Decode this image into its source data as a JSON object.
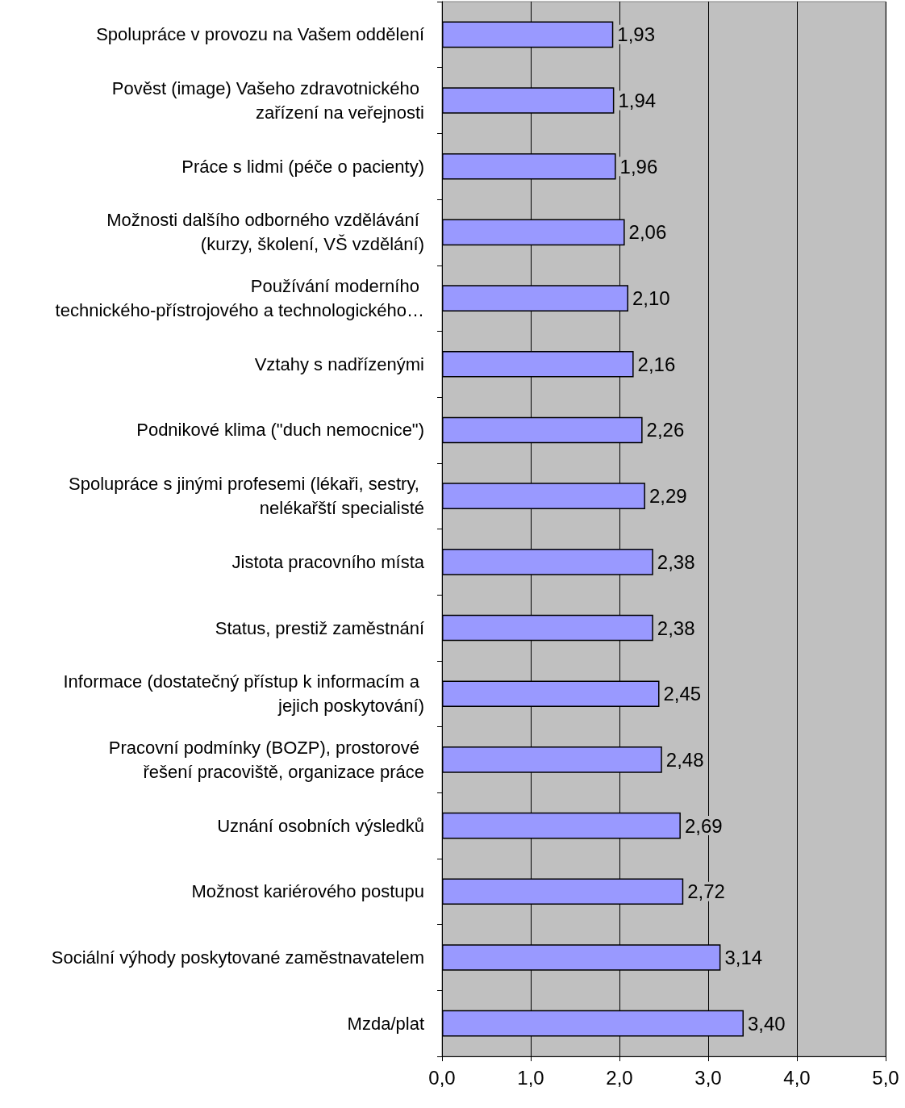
{
  "chart_data": {
    "type": "bar",
    "orientation": "horizontal",
    "categories": [
      "Spolupráce v provozu na Vašem oddělení",
      "Pověst (image) Vašeho zdravotnického zařízení na veřejnosti",
      "Práce s lidmi (péče o pacienty)",
      "Možnosti dalšího odborného vzdělávání (kurzy, školení, VŠ vzdělání)",
      "Používání moderního technického-přístrojového a technologického…",
      "Vztahy s nadřízenými",
      "Podnikové klima (\"duch nemocnice\")",
      "Spolupráce s jinými profesemi (lékaři, sestry, nelékařští specialisté",
      "Jistota pracovního místa",
      "Status, prestiž zaměstnání",
      "Informace (dostatečný přístup k informacím a jejich poskytování)",
      "Pracovní podmínky (BOZP), prostorové řešení pracoviště, organizace práce",
      "Uznání osobních výsledků",
      "Možnost kariérového postupu",
      "Sociální výhody poskytované zaměstnavatelem",
      "Mzda/plat"
    ],
    "values": [
      1.93,
      1.94,
      1.96,
      2.06,
      2.1,
      2.16,
      2.26,
      2.29,
      2.38,
      2.38,
      2.45,
      2.48,
      2.69,
      2.72,
      3.14,
      3.4
    ],
    "value_labels": [
      "1,93",
      "1,94",
      "1,96",
      "2,06",
      "2,10",
      "2,16",
      "2,26",
      "2,29",
      "2,38",
      "2,38",
      "2,45",
      "2,48",
      "2,69",
      "2,72",
      "3,14",
      "3,40"
    ],
    "color": "#9999ff",
    "xlim": [
      0,
      5
    ],
    "xticks": [
      {
        "value": 0,
        "label": "0,0"
      },
      {
        "value": 1,
        "label": "1,0"
      },
      {
        "value": 2,
        "label": "2,0"
      },
      {
        "value": 3,
        "label": "3,0"
      },
      {
        "value": 4,
        "label": "4,0"
      },
      {
        "value": 5,
        "label": "5,0"
      }
    ],
    "grid": "x"
  }
}
